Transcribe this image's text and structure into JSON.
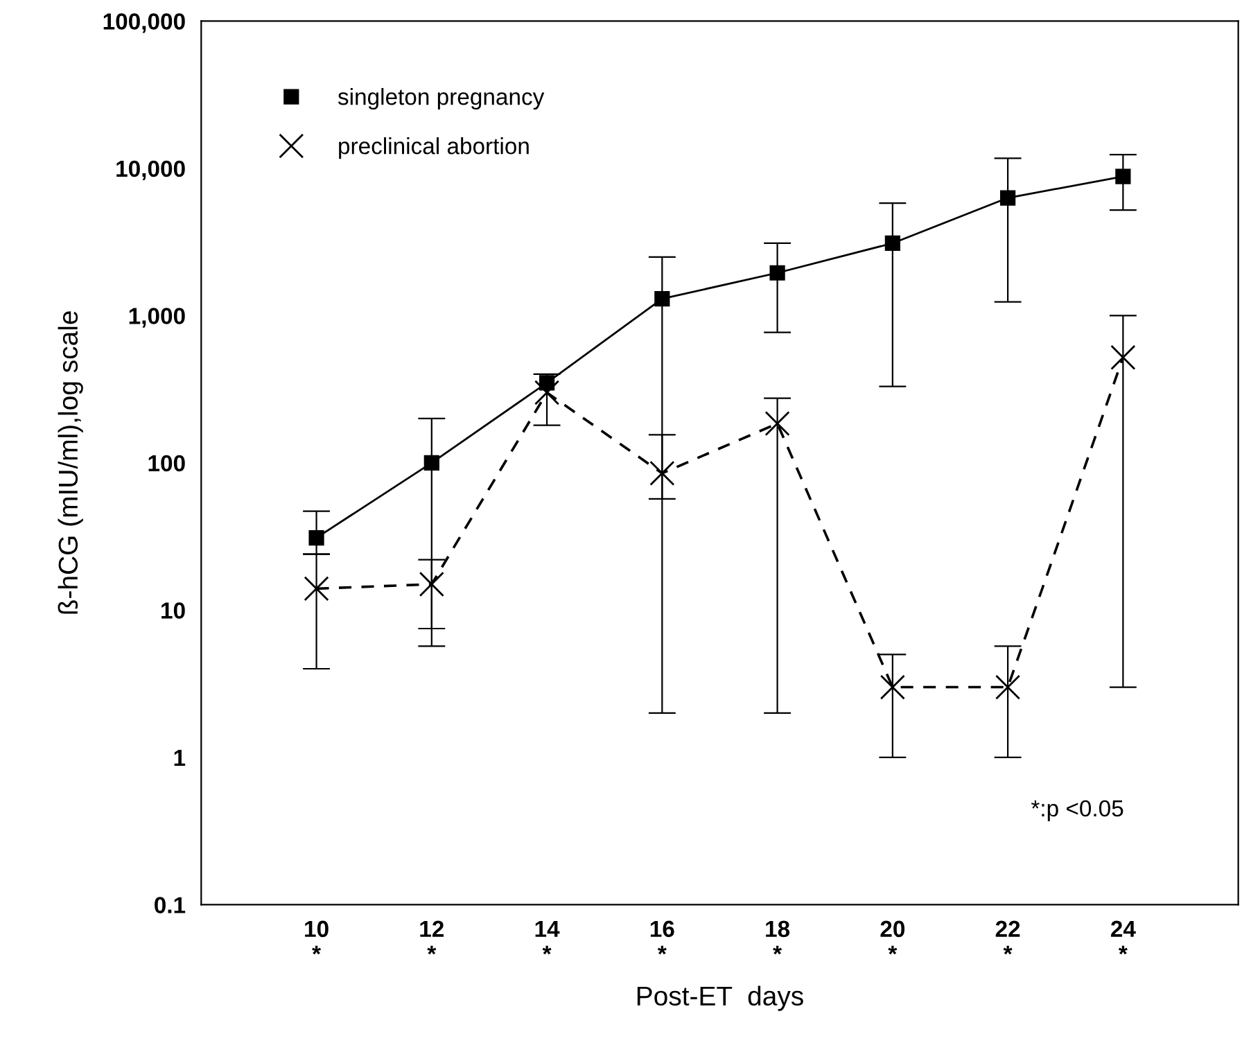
{
  "chart_data": {
    "type": "line",
    "xlabel": "Post-ET  days",
    "ylabel": "ß-hCG (mIU/ml),log scale",
    "log": "y",
    "grid": false,
    "legend": "top left",
    "x": [
      10,
      12,
      14,
      16,
      18,
      20,
      22,
      24
    ],
    "xlim": [
      8,
      26
    ],
    "xticks": [
      {
        "value": 10,
        "label": "10\n*"
      },
      {
        "value": 12,
        "label": "12\n*"
      },
      {
        "value": 14,
        "label": "14\n*"
      },
      {
        "value": 16,
        "label": "16\n*"
      },
      {
        "value": 18,
        "label": "18\n*"
      },
      {
        "value": 20,
        "label": "20\n*"
      },
      {
        "value": 22,
        "label": "22\n*"
      },
      {
        "value": 24,
        "label": "24\n*"
      }
    ],
    "ylim": [
      0.1,
      100000
    ],
    "yticks": [
      0.1,
      1,
      10,
      100,
      {
        "value": 1000,
        "label": "1,000"
      },
      {
        "value": 10000,
        "label": "10,000"
      },
      {
        "value": 100000,
        "label": "100,000"
      }
    ],
    "annotations": [
      "*:p <0.05"
    ],
    "series": [
      {
        "name": "singleton pregnancy",
        "color": "#000000",
        "marker": "square",
        "line_style": "solid",
        "values": [
          31,
          100,
          350,
          1300,
          1950,
          3100,
          6300,
          8800
        ],
        "errors": [
          [
            24,
            47
          ],
          [
            7.5,
            200
          ],
          null,
          [
            57,
            2500
          ],
          [
            770,
            3100
          ],
          [
            330,
            5800
          ],
          [
            1240,
            11700
          ],
          [
            5200,
            12400
          ]
        ]
      },
      {
        "name": "preclinical abortion",
        "color": "#000000",
        "marker": "cross",
        "line_style": "dashed",
        "values": [
          14,
          15,
          300,
          85,
          185,
          3,
          3,
          520
        ],
        "errors": [
          [
            4,
            24
          ],
          [
            5.7,
            22
          ],
          [
            180,
            400
          ],
          [
            2,
            155
          ],
          [
            2,
            275
          ],
          [
            1,
            5
          ],
          [
            1,
            5.7
          ],
          [
            3,
            1000
          ]
        ]
      }
    ]
  }
}
